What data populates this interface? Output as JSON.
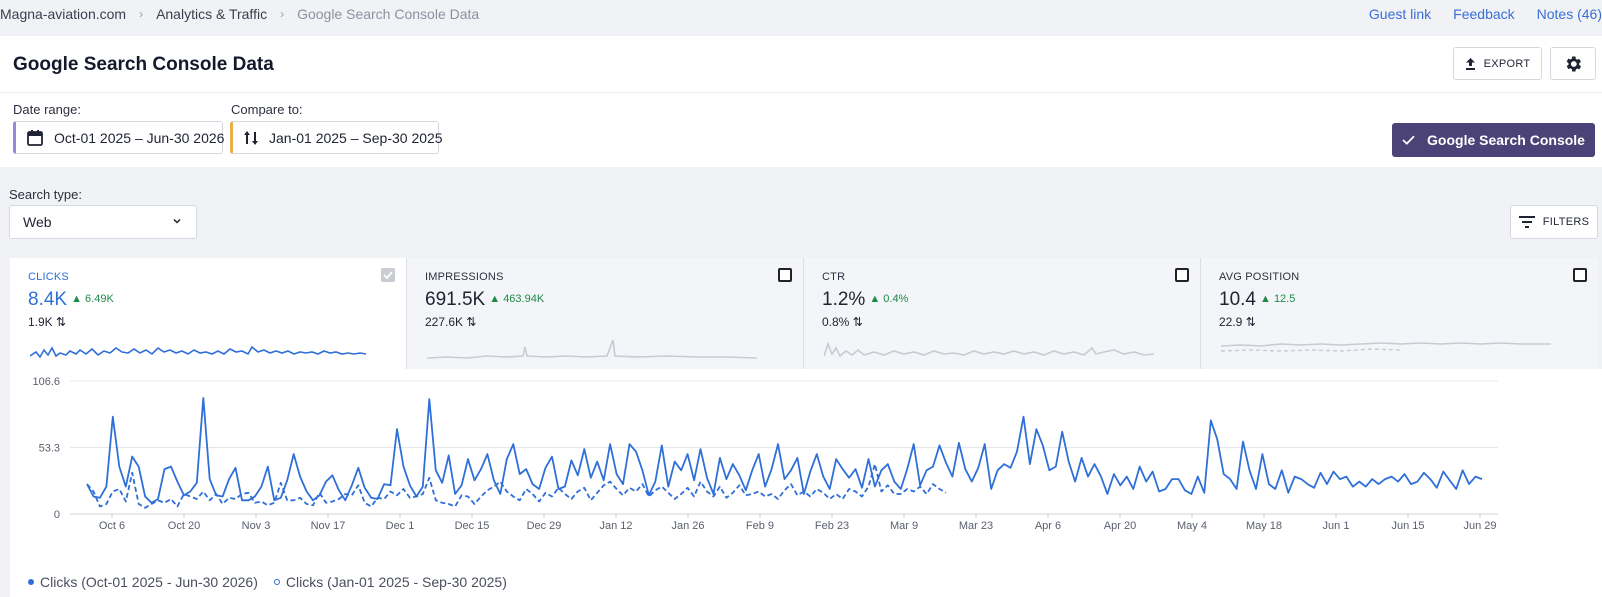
{
  "breadcrumb": {
    "site": "Magna-aviation.com",
    "section": "Analytics & Traffic",
    "current": "Google Search Console Data"
  },
  "top_links": {
    "guest": "Guest link",
    "feedback": "Feedback",
    "notes": "Notes (46)"
  },
  "page": {
    "title": "Google Search Console Data",
    "export_label": "EXPORT"
  },
  "filters": {
    "date_range_label": "Date range:",
    "date_range_value": "Oct-01 2025 – Jun-30 2026",
    "compare_label": "Compare to:",
    "compare_value": "Jan-01 2025 – Sep-30 2025",
    "gsc_button": "Google Search Console",
    "search_type_label": "Search type:",
    "search_type_value": "Web",
    "filters_button": "FILTERS"
  },
  "metrics": [
    {
      "name": "CLICKS",
      "value": "8.4K",
      "delta": "6.49K",
      "compare": "1.9K",
      "checked": true
    },
    {
      "name": "IMPRESSIONS",
      "value": "691.5K",
      "delta": "463.94K",
      "compare": "227.6K",
      "checked": false
    },
    {
      "name": "CTR",
      "value": "1.2%",
      "delta": "0.4%",
      "compare": "0.8%",
      "checked": false
    },
    {
      "name": "AVG POSITION",
      "value": "10.4",
      "delta": "12.5",
      "compare": "22.9",
      "checked": false
    }
  ],
  "colors": {
    "accent": "#2f6fd8",
    "primary_button": "#4b4277",
    "delta_up": "#1d8a4a"
  },
  "chart_data": {
    "type": "line",
    "ylim": [
      0,
      106.6
    ],
    "yticks": [
      "106.6",
      "53.3",
      "0"
    ],
    "x_ticks": [
      "Oct 6",
      "Oct 20",
      "Nov 3",
      "Nov 17",
      "Dec 1",
      "Dec 15",
      "Dec 29",
      "Jan 12",
      "Jan 26",
      "Feb 9",
      "Feb 23",
      "Mar 9",
      "Mar 23",
      "Apr 6",
      "Apr 20",
      "May 4",
      "May 18",
      "Jun 1",
      "Jun 15",
      "Jun 29"
    ],
    "series": [
      {
        "name": "Clicks (Oct-01 2025 - Jun-30 2026)",
        "style": "solid",
        "values": [
          24,
          14,
          13,
          22,
          78,
          38,
          22,
          46,
          38,
          14,
          9,
          12,
          36,
          38,
          26,
          15,
          18,
          25,
          93,
          28,
          15,
          14,
          28,
          37,
          11,
          11,
          14,
          22,
          38,
          11,
          13,
          27,
          48,
          30,
          18,
          11,
          15,
          26,
          31,
          19,
          11,
          23,
          37,
          21,
          13,
          12,
          24,
          23,
          68,
          38,
          23,
          14,
          22,
          92,
          35,
          25,
          47,
          16,
          23,
          44,
          27,
          36,
          48,
          27,
          16,
          44,
          56,
          32,
          36,
          24,
          20,
          37,
          46,
          20,
          22,
          43,
          31,
          52,
          29,
          42,
          27,
          56,
          32,
          24,
          56,
          50,
          35,
          15,
          26,
          55,
          22,
          42,
          35,
          48,
          27,
          52,
          29,
          16,
          45,
          28,
          40,
          31,
          19,
          35,
          48,
          22,
          36,
          56,
          28,
          35,
          45,
          16,
          34,
          48,
          30,
          20,
          44,
          36,
          29,
          36,
          21,
          44,
          22,
          35,
          40,
          26,
          20,
          36,
          56,
          23,
          35,
          38,
          55,
          41,
          30,
          57,
          36,
          26,
          37,
          56,
          20,
          35,
          40,
          37,
          50,
          78,
          40,
          68,
          55,
          35,
          38,
          66,
          42,
          26,
          45,
          30,
          40,
          30,
          16,
          32,
          23,
          30,
          20,
          38,
          26,
          34,
          18,
          20,
          28,
          28,
          19,
          16,
          30,
          17,
          75,
          60,
          32,
          28,
          20,
          58,
          35,
          20,
          48,
          24,
          20,
          35,
          17,
          30,
          28,
          24,
          21,
          33,
          24,
          34,
          28,
          30,
          22,
          26,
          22,
          28,
          24,
          28,
          30,
          26,
          32,
          24,
          26,
          33,
          28,
          21,
          34,
          27,
          20,
          35,
          24,
          30,
          28
        ]
      },
      {
        "name": "Clicks (Jan-01 2025 - Sep-30 2025)",
        "style": "dashed",
        "values": [
          24,
          18,
          6,
          8,
          18,
          20,
          10,
          33,
          8,
          5,
          8,
          11,
          9,
          12,
          6,
          16,
          14,
          12,
          18,
          11,
          16,
          8,
          13,
          12,
          16,
          17,
          9,
          10,
          7,
          9,
          25,
          11,
          11,
          13,
          8,
          7,
          17,
          9,
          10,
          12,
          16,
          15,
          23,
          9,
          6,
          13,
          12,
          18,
          15,
          20,
          13,
          14,
          16,
          29,
          11,
          9,
          8,
          6,
          15,
          14,
          8,
          14,
          19,
          22,
          26,
          18,
          14,
          11,
          20,
          16,
          10,
          17,
          14,
          21,
          16,
          12,
          18,
          21,
          11,
          17,
          23,
          26,
          20,
          15,
          21,
          18,
          24,
          14,
          19,
          22,
          17,
          12,
          16,
          21,
          14,
          26,
          18,
          14,
          22,
          13,
          17,
          23,
          15,
          16,
          18,
          14,
          16,
          12,
          19,
          24,
          15,
          18,
          14,
          20,
          17,
          12,
          16,
          12,
          20,
          18,
          14,
          22,
          40,
          18,
          23,
          16,
          16,
          20,
          18,
          22,
          16,
          24,
          20,
          17
        ]
      }
    ]
  }
}
